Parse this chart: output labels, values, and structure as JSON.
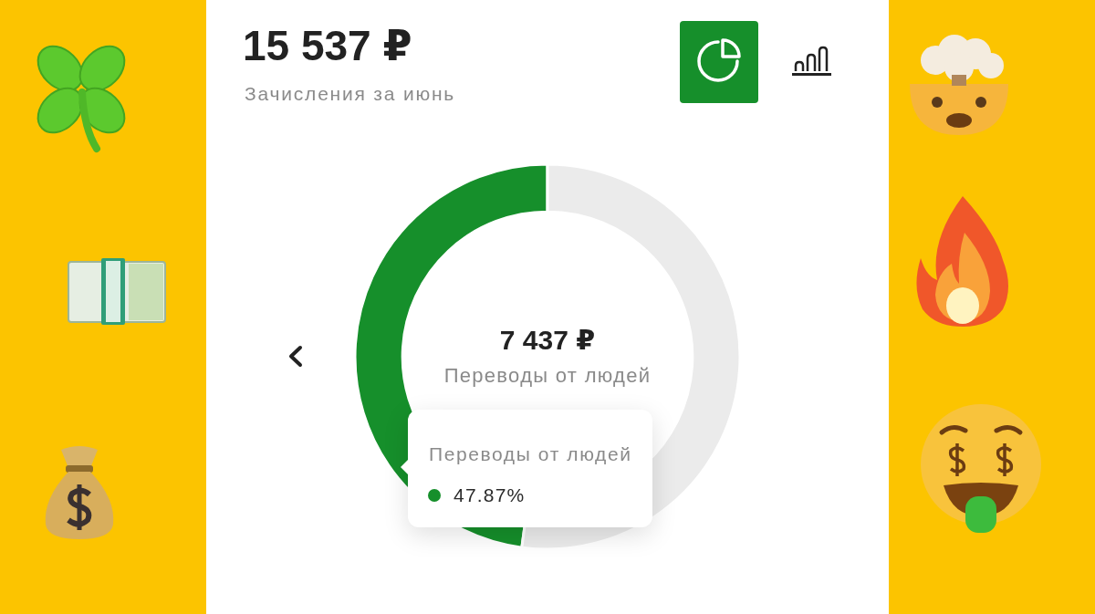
{
  "chart_data": {
    "type": "donut",
    "title": "15 537 ₽",
    "subtitle": "Зачисления за июнь",
    "categories": [
      "Переводы от людей",
      null
    ],
    "values": [
      47.87,
      52.13
    ],
    "colors": [
      "#168f2b",
      "#ebebeb"
    ],
    "value_labels": [
      "47.87%",
      null
    ],
    "annotations": [
      "7 437 ₽",
      "Переводы от людей"
    ]
  }
}
